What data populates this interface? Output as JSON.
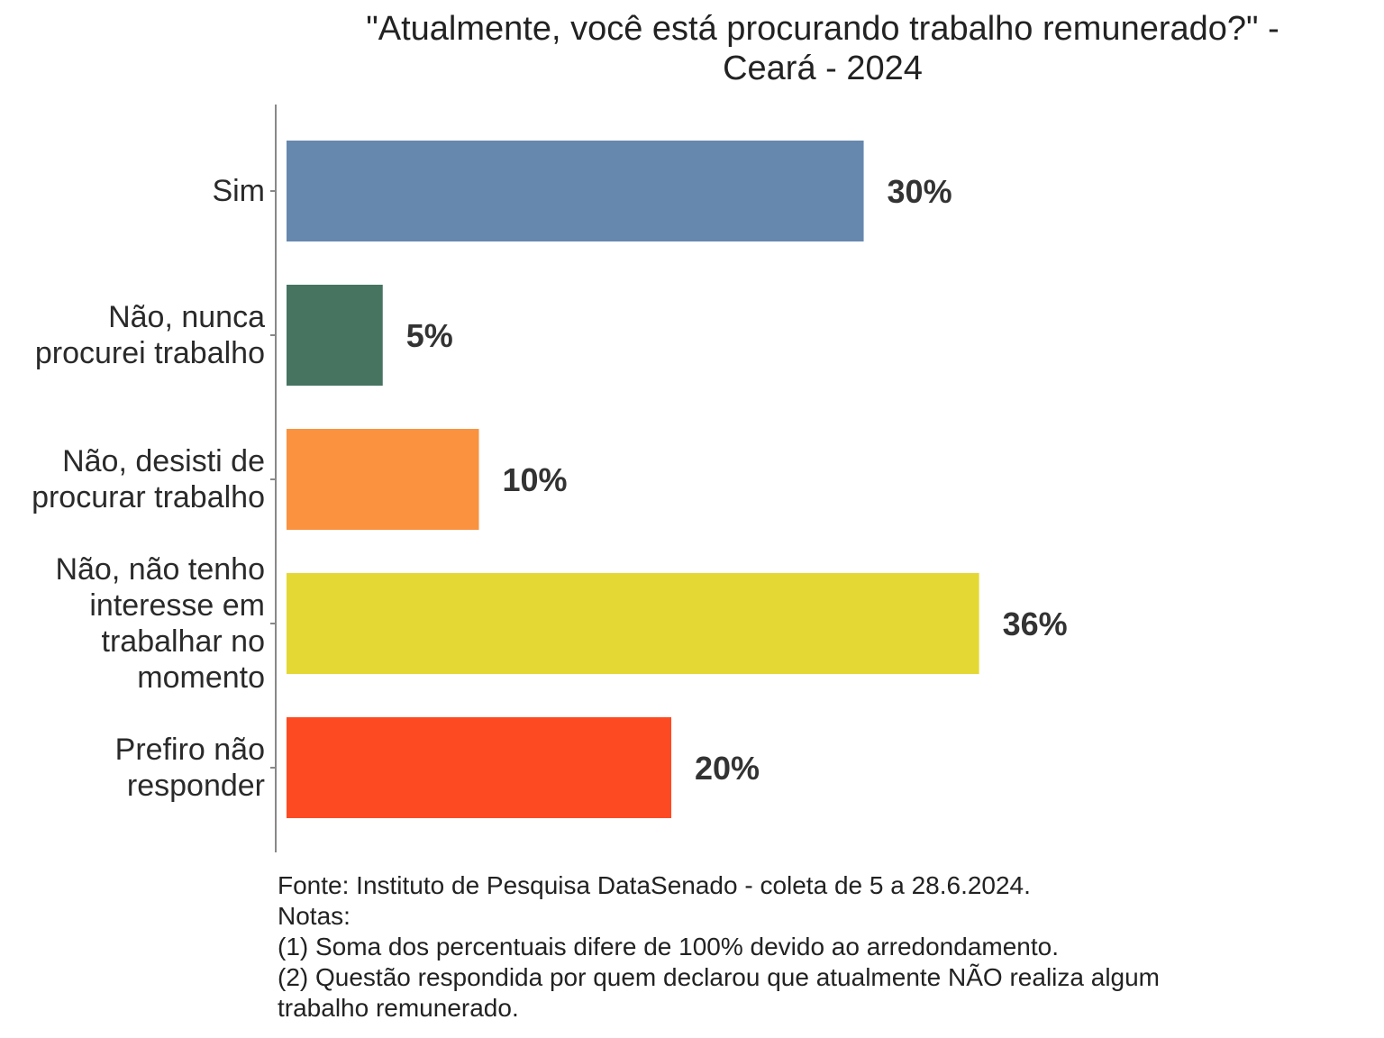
{
  "chart_data": {
    "type": "bar",
    "orientation": "horizontal",
    "title": [
      "\"Atualmente, você está procurando trabalho remunerado?\" -",
      "Ceará - 2024"
    ],
    "categories": [
      [
        "Sim"
      ],
      [
        "Não, nunca",
        "procurei trabalho"
      ],
      [
        "Não, desisti de",
        "procurar trabalho"
      ],
      [
        "Não, não tenho",
        "interesse em",
        "trabalhar no",
        "momento"
      ],
      [
        "Prefiro não",
        "responder"
      ]
    ],
    "values": [
      30,
      5,
      10,
      36,
      20
    ],
    "data_labels": [
      "30%",
      "5%",
      "10%",
      "36%",
      "20%"
    ],
    "colors": [
      "#6688ae",
      "#467461",
      "#fa923f",
      "#e4d834",
      "#fe4a22"
    ],
    "xlim": [
      0,
      37
    ],
    "xlabel": "",
    "ylabel": "",
    "grid": false,
    "legend": "none"
  },
  "footnote": [
    "Fonte: Instituto de Pesquisa DataSenado - coleta de 5 a 28.6.2024.",
    "Notas:",
    "(1) Soma dos percentuais difere de 100% devido ao arredondamento.",
    "(2) Questão respondida por quem declarou que atualmente NÃO realiza algum",
    "trabalho remunerado."
  ]
}
